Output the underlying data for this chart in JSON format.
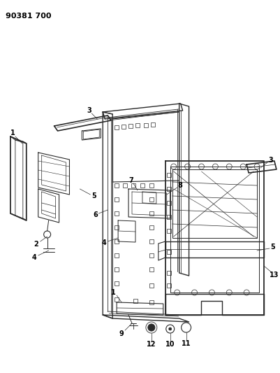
{
  "title": "90381 700",
  "title_fontsize": 8,
  "title_fontweight": "bold",
  "background_color": "#ffffff",
  "line_color": "#2a2a2a",
  "label_color": "#000000",
  "figsize": [
    4.01,
    5.33
  ],
  "dpi": 100,
  "label_fontsize": 7,
  "label_fontweight": "bold"
}
